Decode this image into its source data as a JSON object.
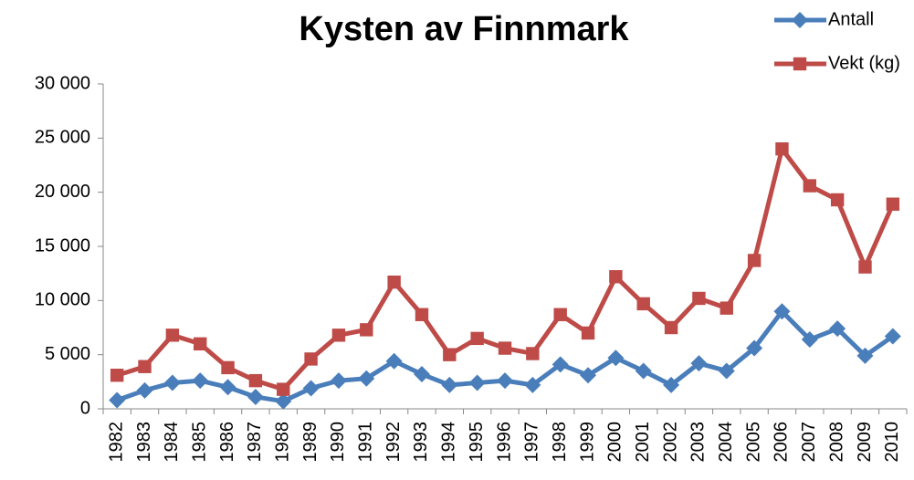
{
  "chart_data": {
    "type": "line",
    "title": "Kysten av Finnmark",
    "categories": [
      "1982",
      "1983",
      "1984",
      "1985",
      "1986",
      "1987",
      "1988",
      "1989",
      "1990",
      "1991",
      "1992",
      "1993",
      "1994",
      "1995",
      "1996",
      "1997",
      "1998",
      "1999",
      "2000",
      "2001",
      "2002",
      "2003",
      "2004",
      "2005",
      "2006",
      "2007",
      "2008",
      "2009",
      "2010"
    ],
    "series": [
      {
        "name": "Antall",
        "color": "#4a7ebb",
        "marker": "diamond",
        "values": [
          800,
          1700,
          2400,
          2600,
          2000,
          1100,
          700,
          1900,
          2600,
          2800,
          4400,
          3200,
          2200,
          2400,
          2600,
          2200,
          4100,
          3100,
          4700,
          3500,
          2200,
          4200,
          3500,
          5600,
          9000,
          6400,
          7400,
          4900,
          6700
        ]
      },
      {
        "name": "Vekt (kg)",
        "color": "#be4b48",
        "marker": "square",
        "values": [
          3100,
          3900,
          6800,
          6000,
          3800,
          2600,
          1800,
          4600,
          6800,
          7300,
          11700,
          8700,
          5000,
          6500,
          5600,
          5100,
          8700,
          7000,
          12200,
          9700,
          7500,
          10200,
          9300,
          13700,
          24000,
          20600,
          19300,
          13100,
          18900
        ]
      }
    ],
    "ylim": [
      0,
      30000
    ],
    "yticks": [
      0,
      {
        "value": 5000,
        "label": "5 000"
      },
      {
        "value": 10000,
        "label": "10 000"
      },
      {
        "value": 15000,
        "label": "15 000"
      },
      {
        "value": 20000,
        "label": "20 000"
      },
      {
        "value": 25000,
        "label": "25 000"
      },
      {
        "value": 30000,
        "label": "30 000"
      }
    ],
    "legend": "top-right"
  }
}
